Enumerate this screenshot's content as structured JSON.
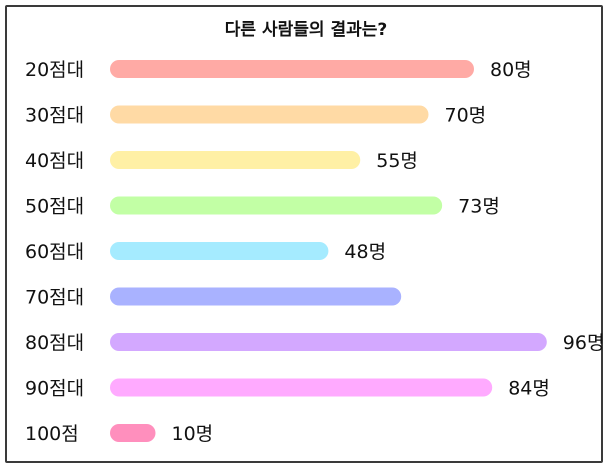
{
  "chart_data": {
    "type": "bar",
    "orientation": "horizontal",
    "title": "다른 사람들의 결과는?",
    "categories": [
      "20점대",
      "30점대",
      "40점대",
      "50점대",
      "60점대",
      "70점대",
      "80점대",
      "90점대",
      "100점"
    ],
    "values": [
      80,
      70,
      55,
      73,
      48,
      null,
      96,
      84,
      10
    ],
    "value_labels": [
      "80명",
      "70명",
      "55명",
      "73명",
      "48명",
      "",
      "96명",
      "84명",
      "10명"
    ],
    "colors": [
      "#ffaaa5",
      "#ffdaa5",
      "#fff0a5",
      "#c2ffa5",
      "#a5ebff",
      "#a9b2ff",
      "#d3a8ff",
      "#ffaaff",
      "#ff8fbd"
    ],
    "estimated_value_for_unlabeled_bar": {
      "category": "70점대",
      "value": 64
    }
  }
}
